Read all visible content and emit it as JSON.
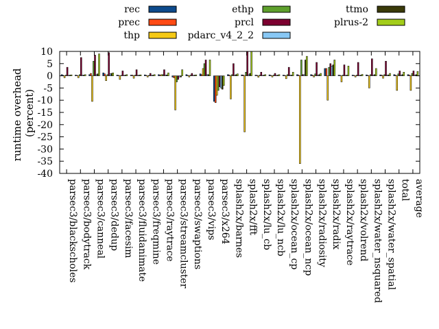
{
  "chart_data": {
    "type": "bar",
    "title": "",
    "xlabel": "",
    "ylabel": "runtime overhead\n(percent)",
    "ylim": [
      -40,
      10
    ],
    "yticks": [
      10,
      5,
      0,
      -5,
      -10,
      -15,
      -20,
      -25,
      -30,
      -35,
      -40
    ],
    "grid": false,
    "legend_position": "top",
    "categories": [
      "parsec3/blackscholes",
      "parsec3/bodytrack",
      "parsec3/canneal",
      "parsec3/dedup",
      "parsec3/facesim",
      "parsec3/fluidanimate",
      "parsec3/freqmine",
      "parsec3/raytrace",
      "parsec3/streamcluster",
      "parsec3/swaptions",
      "parsec3/vips",
      "parsec3/x264",
      "splash2x/barnes",
      "splash2x/fft",
      "splash2x/lu_cb",
      "splash2x/lu_ncb",
      "splash2x/ocean_cp",
      "splash2x/ocean_ncp",
      "splash2x/radiosity",
      "splash2x/radix",
      "splash2x/raytrace",
      "splash2x/volrend",
      "splash2x/water_nsquared",
      "splash2x/water_spatial",
      "total",
      "average"
    ],
    "series": [
      {
        "name": "rec",
        "color": "#0d4a8c",
        "values": [
          0.5,
          0.3,
          0.5,
          1.2,
          0.3,
          0.3,
          0.4,
          0.5,
          -0.5,
          0.5,
          0.8,
          -10.5,
          0.5,
          0.4,
          0.3,
          0.4,
          0.3,
          0.5,
          0.5,
          3.0,
          0.3,
          0.3,
          0.4,
          0.4,
          0.5,
          0.5
        ]
      },
      {
        "name": "prec",
        "color": "#ff4a14",
        "values": [
          0.2,
          0.2,
          1.0,
          0.8,
          0.2,
          0.3,
          0.2,
          0.3,
          -0.8,
          0.2,
          0.5,
          -11.0,
          0.3,
          0.3,
          0.2,
          0.2,
          0.2,
          0.3,
          0.3,
          3.0,
          0.2,
          0.2,
          0.2,
          0.3,
          0.3,
          0.3
        ]
      },
      {
        "name": "thp",
        "color": "#f5c915",
        "values": [
          -0.8,
          -0.8,
          -10.5,
          -2.0,
          -1.5,
          -1.0,
          -0.5,
          0.5,
          -14.0,
          -0.5,
          3.0,
          -8.0,
          -9.5,
          -23.0,
          -0.6,
          -0.5,
          -1.2,
          -36.0,
          -0.5,
          -10.0,
          -2.5,
          -0.5,
          -5.0,
          -1.0,
          -6.0,
          -6.0
        ]
      },
      {
        "name": "ethp",
        "color": "#5ea02c",
        "values": [
          0.3,
          0.5,
          6.0,
          0.5,
          0.2,
          0.3,
          0.2,
          0.5,
          -2.5,
          0.3,
          5.0,
          -6.0,
          0.5,
          1.5,
          0.3,
          0.3,
          0.5,
          6.5,
          0.8,
          3.5,
          0.3,
          0.3,
          0.5,
          0.5,
          0.8,
          1.0
        ]
      },
      {
        "name": "prcl",
        "color": "#7c0030",
        "values": [
          3.5,
          7.5,
          8.5,
          9.5,
          2.0,
          2.5,
          1.0,
          2.5,
          -1.5,
          1.0,
          6.5,
          -4.5,
          5.0,
          10.0,
          1.5,
          1.0,
          3.5,
          0.5,
          5.5,
          5.0,
          4.5,
          5.5,
          7.0,
          6.0,
          2.0,
          2.0
        ]
      },
      {
        "name": "pdarc_v4_2_2",
        "color": "#88c8f5",
        "values": [
          0.2,
          0.3,
          0.5,
          0.8,
          0.2,
          0.2,
          0.2,
          0.3,
          -0.5,
          0.2,
          0.5,
          -5.0,
          0.3,
          0.5,
          0.2,
          0.2,
          0.3,
          0.5,
          0.3,
          4.0,
          0.2,
          0.2,
          0.3,
          0.3,
          0.3,
          0.3
        ]
      },
      {
        "name": "ttmo",
        "color": "#3a3a09",
        "values": [
          0.3,
          0.3,
          0.8,
          1.0,
          0.3,
          0.3,
          0.3,
          0.4,
          -0.5,
          0.3,
          0.5,
          -5.5,
          0.5,
          1.0,
          0.3,
          0.3,
          0.3,
          6.5,
          0.5,
          4.5,
          0.3,
          0.3,
          0.5,
          0.4,
          0.5,
          0.5
        ]
      },
      {
        "name": "plrus-2",
        "color": "#a3cd1a",
        "values": [
          0.4,
          0.5,
          9.0,
          1.2,
          0.5,
          0.4,
          0.5,
          1.2,
          2.5,
          0.4,
          6.5,
          -4.0,
          0.8,
          10.0,
          0.5,
          0.5,
          1.5,
          8.0,
          1.0,
          6.5,
          4.0,
          0.6,
          3.0,
          1.0,
          1.5,
          1.8
        ]
      }
    ]
  }
}
